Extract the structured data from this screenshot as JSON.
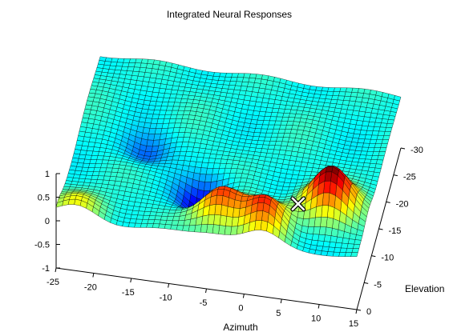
{
  "chart_data": {
    "type": "surface",
    "title": "Integrated Neural Responses",
    "xlabel": "Azimuth",
    "ylabel": "Elevation",
    "zlabel": "",
    "xlim": [
      -25,
      15
    ],
    "ylim": [
      -30,
      0
    ],
    "zlim": [
      -1,
      1
    ],
    "x_ticks": [
      "-25",
      "-20",
      "-15",
      "-10",
      "-5",
      "0",
      "5",
      "10",
      "15"
    ],
    "y_ticks": [
      "0",
      "-5",
      "-10",
      "-15",
      "-20",
      "-25",
      "-30"
    ],
    "z_ticks": [
      "1",
      "0.5",
      "0",
      "-0.5",
      "-1"
    ],
    "colormap": "jet",
    "grid": false,
    "marker": {
      "symbol": "x",
      "color": "#ffffff",
      "x": 7,
      "y": -1,
      "z": 0.95
    },
    "surface_features": [
      {
        "kind": "peak",
        "x": 10,
        "y": -8,
        "z": 0.95
      },
      {
        "kind": "peak",
        "x": 3,
        "y": -3,
        "z": 0.9
      },
      {
        "kind": "peak",
        "x": -4,
        "y": -4,
        "z": 0.75
      },
      {
        "kind": "peak",
        "x": -22,
        "y": -1,
        "z": 0.4
      },
      {
        "kind": "trough",
        "x": -7,
        "y": -8,
        "z": -0.45
      },
      {
        "kind": "trough",
        "x": 5,
        "y": -3,
        "z": -0.25
      },
      {
        "kind": "trough",
        "x": -16,
        "y": -15,
        "z": -0.15
      }
    ],
    "base_level": 0.1
  },
  "colors": {
    "background": "#ffffff",
    "axis": "#000000",
    "mesh": "#000000",
    "marker": "#ffffff"
  }
}
